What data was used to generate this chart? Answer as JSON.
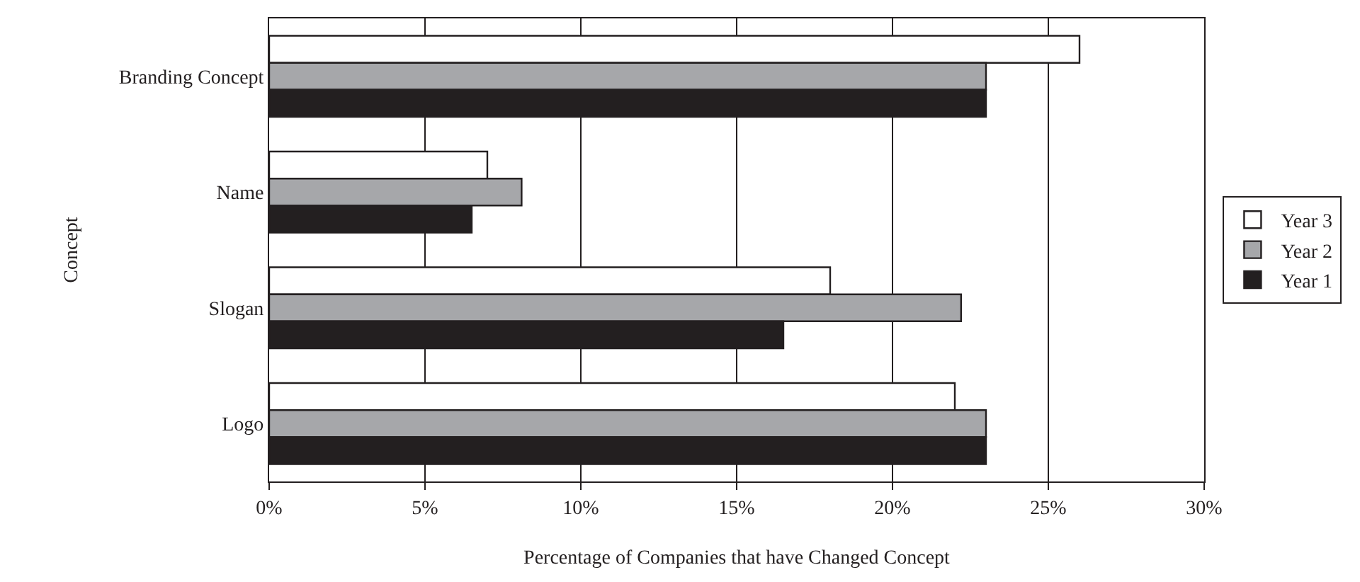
{
  "chart_data": {
    "type": "bar",
    "orientation": "horizontal",
    "xlabel": "Percentage of Companies that have Changed Concept",
    "ylabel": "Concept",
    "categories": [
      "Branding Concept",
      "Name",
      "Slogan",
      "Logo"
    ],
    "series": [
      {
        "name": "Year 3",
        "color": "#ffffff",
        "values": [
          26,
          7,
          18,
          22
        ]
      },
      {
        "name": "Year 2",
        "color": "#a6a7aa",
        "values": [
          23,
          8.1,
          22.2,
          23
        ]
      },
      {
        "name": "Year 1",
        "color": "#231f20",
        "values": [
          23,
          6.5,
          16.5,
          23
        ]
      }
    ],
    "xlim": [
      0,
      30
    ],
    "xticks": [
      {
        "value": 0,
        "label": "0%"
      },
      {
        "value": 5,
        "label": "5%"
      },
      {
        "value": 10,
        "label": "10%"
      },
      {
        "value": 15,
        "label": "15%"
      },
      {
        "value": 20,
        "label": "20%"
      },
      {
        "value": 25,
        "label": "25%"
      },
      {
        "value": 30,
        "label": "30%"
      }
    ],
    "grid": "x",
    "legend": "right"
  }
}
